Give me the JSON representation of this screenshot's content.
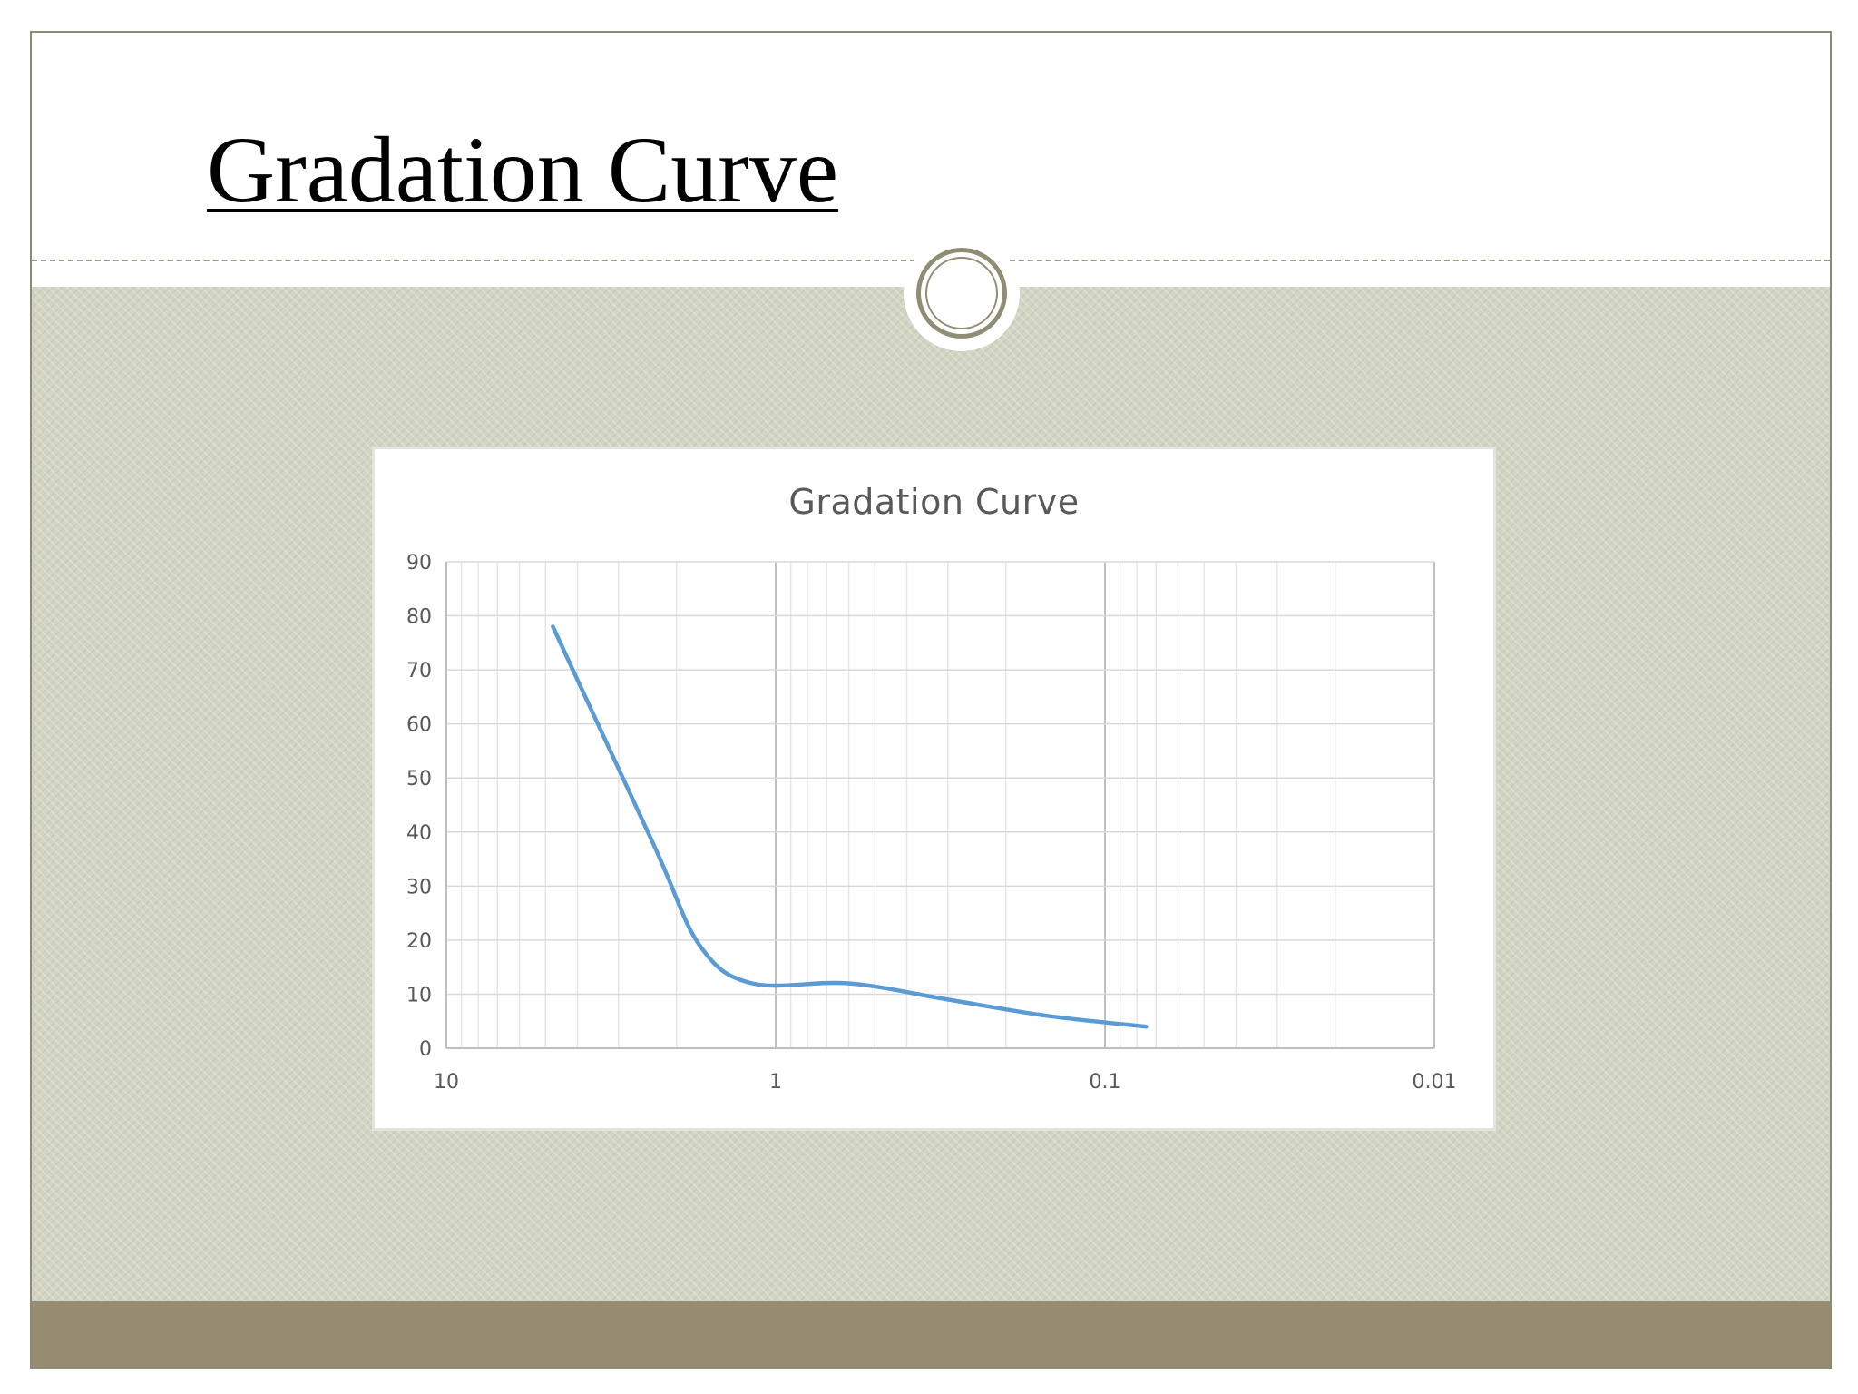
{
  "slide": {
    "title": "Gradation Curve",
    "colors": {
      "content_background": "#d3d5c4",
      "footer_bar": "#958c72",
      "frame_border": "#8c8a72",
      "emblem_ring": "#8f8d74"
    }
  },
  "chart_data": {
    "type": "line",
    "title": "Gradation Curve",
    "xlabel": "",
    "ylabel": "",
    "x_scale": "log",
    "x_reversed": true,
    "xlim": [
      10,
      0.01
    ],
    "ylim": [
      0,
      90
    ],
    "x_ticks": [
      10,
      1,
      0.1,
      0.01
    ],
    "x_tick_labels": [
      "10",
      "1",
      "0.1",
      "0.01"
    ],
    "y_ticks": [
      0,
      10,
      20,
      30,
      40,
      50,
      60,
      70,
      80,
      90
    ],
    "y_tick_labels": [
      "0",
      "10",
      "20",
      "30",
      "40",
      "50",
      "60",
      "70",
      "80",
      "90"
    ],
    "grid": true,
    "legend": "none",
    "series": [
      {
        "color": "#5b9bd5",
        "x": [
          4.75,
          2.36,
          1.7,
          1.18,
          0.6,
          0.3,
          0.15,
          0.075
        ],
        "y": [
          78,
          38,
          19,
          12,
          12,
          9,
          6,
          4
        ]
      }
    ]
  }
}
